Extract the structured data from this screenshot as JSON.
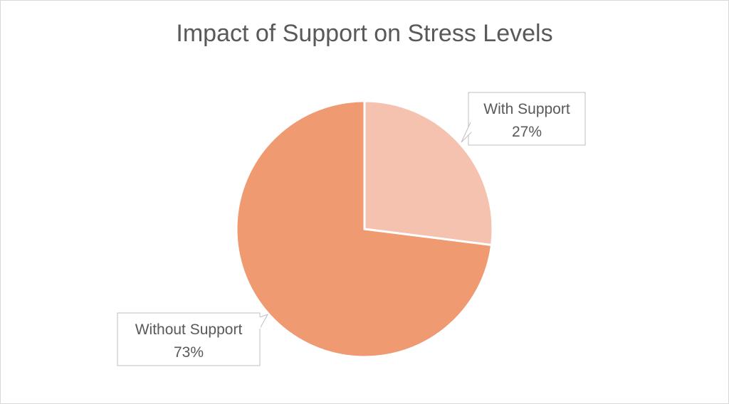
{
  "chart_data": {
    "type": "pie",
    "title": "Impact of Support on Stress Levels",
    "slices": [
      {
        "label": "With Support",
        "value": 27,
        "value_label": "27%",
        "color": "#f5c2b0"
      },
      {
        "label": "Without Support",
        "value": 73,
        "value_label": "73%",
        "color": "#f09a72"
      }
    ],
    "start_angle_deg": 0,
    "direction": "clockwise",
    "slice_border_color": "#ffffff",
    "label_style": "callout",
    "legend": "none"
  }
}
